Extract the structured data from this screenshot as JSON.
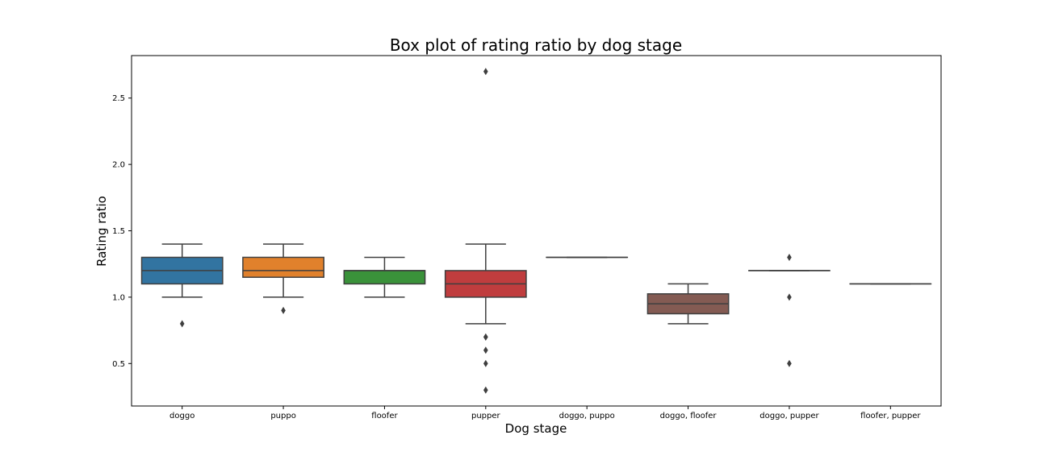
{
  "chart_data": {
    "type": "box",
    "title": "Box plot of rating ratio by dog stage",
    "xlabel": "Dog stage",
    "ylabel": "Rating ratio",
    "ylim": [
      0.18,
      2.82
    ],
    "yticks": [
      0.5,
      1.0,
      1.5,
      2.0,
      2.5
    ],
    "ytick_labels": [
      "0.5",
      "1.0",
      "1.5",
      "2.0",
      "2.5"
    ],
    "grid": false,
    "categories": [
      "doggo",
      "puppo",
      "floofer",
      "pupper",
      "doggo, puppo",
      "doggo, floofer",
      "doggo, pupper",
      "floofer, pupper"
    ],
    "boxes": [
      {
        "category": "doggo",
        "color": "#3274a1",
        "whisker_low": 1.0,
        "q1": 1.1,
        "median": 1.2,
        "q3": 1.3,
        "whisker_high": 1.4,
        "outliers": [
          0.8
        ]
      },
      {
        "category": "puppo",
        "color": "#e1812c",
        "whisker_low": 1.0,
        "q1": 1.15,
        "median": 1.2,
        "q3": 1.3,
        "whisker_high": 1.4,
        "outliers": [
          0.9
        ]
      },
      {
        "category": "floofer",
        "color": "#3a923a",
        "whisker_low": 1.0,
        "q1": 1.1,
        "median": 1.2,
        "q3": 1.2,
        "whisker_high": 1.3,
        "outliers": []
      },
      {
        "category": "pupper",
        "color": "#c03d3e",
        "whisker_low": 0.8,
        "q1": 1.0,
        "median": 1.1,
        "q3": 1.2,
        "whisker_high": 1.4,
        "outliers": [
          0.7,
          0.7,
          0.6,
          0.5,
          0.3,
          2.7
        ]
      },
      {
        "category": "doggo, puppo",
        "color": "#9372b2",
        "whisker_low": 1.3,
        "q1": 1.3,
        "median": 1.3,
        "q3": 1.3,
        "whisker_high": 1.3,
        "outliers": []
      },
      {
        "category": "doggo, floofer",
        "color": "#845b53",
        "whisker_low": 0.8,
        "q1": 0.875,
        "median": 0.95,
        "q3": 1.025,
        "whisker_high": 1.1,
        "outliers": []
      },
      {
        "category": "doggo, pupper",
        "color": "#d684bd",
        "whisker_low": 1.2,
        "q1": 1.2,
        "median": 1.2,
        "q3": 1.2,
        "whisker_high": 1.2,
        "outliers": [
          1.3,
          1.0,
          0.5
        ]
      },
      {
        "category": "floofer, pupper",
        "color": "#7f7f7f",
        "whisker_low": 1.1,
        "q1": 1.1,
        "median": 1.1,
        "q3": 1.1,
        "whisker_high": 1.1,
        "outliers": []
      }
    ]
  }
}
